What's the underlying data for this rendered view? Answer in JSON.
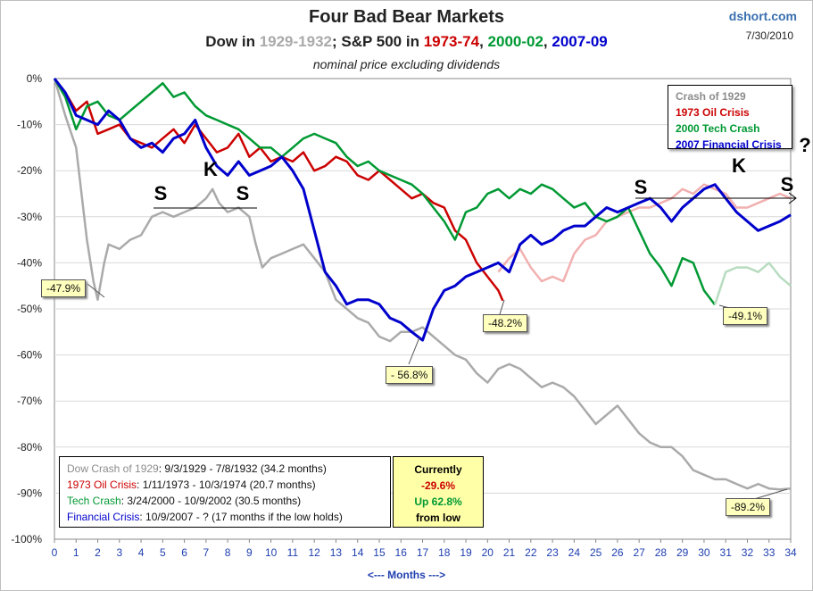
{
  "title": "Four Bad Bear Markets",
  "subtitle": {
    "p1": "Dow in ",
    "p2": "1929-1932",
    "p3": "; S&P 500 in ",
    "p4": "1973-74",
    "p5": ", ",
    "p6": "2000-02",
    "p7": ", ",
    "p8": "2007-09"
  },
  "note": "nominal price excluding dividends",
  "brand": "dshort.com",
  "date": "7/30/2010",
  "legend": [
    {
      "label": "Crash of 1929",
      "color": "#8c8c8c"
    },
    {
      "label": "1973  Oil Crisis",
      "color": "#cc0000"
    },
    {
      "label": "2000  Tech Crash",
      "color": "#009933"
    },
    {
      "label": "2007  Financial Crisis",
      "color": "#0000cc"
    }
  ],
  "info": [
    {
      "name": "Dow Crash of 1929",
      "rest": ": 9/3/1929  - 7/8/1932  (34.2 months)",
      "color": "#8c8c8c"
    },
    {
      "name": "1973 Oil Crisis",
      "rest": ": 1/11/1973  - 10/3/1974  (20.7 months)",
      "color": "#cc0000"
    },
    {
      "name": "Tech Crash",
      "rest": ":  3/24/2000  - 10/9/2002  (30.5 months)",
      "color": "#009933"
    },
    {
      "name": "Financial Crisis",
      "rest": ": 10/9/2007  -  ?  (17 months if the low holds)",
      "color": "#0000cc"
    }
  ],
  "currently": {
    "l1": "Currently",
    "l2": "-29.6%",
    "l3": "Up  62.8%",
    "l4": "from low"
  },
  "callouts": [
    "-47.9%",
    "- 56.8%",
    "-48.2%",
    "-49.1%",
    "-89.2%"
  ],
  "xaxis_label": "<---  Months  --->",
  "annotations": [
    "S",
    "K",
    "S",
    "S",
    "K",
    "S",
    "?"
  ],
  "chart_data": {
    "type": "line",
    "title": "Four Bad Bear Markets",
    "xlabel": "Months",
    "ylabel": "",
    "xlim": [
      0,
      34
    ],
    "ylim": [
      -100,
      0
    ],
    "x_ticks": [
      "0",
      "1",
      "2",
      "3",
      "4",
      "5",
      "6",
      "7",
      "8",
      "9",
      "10",
      "11",
      "12",
      "13",
      "14",
      "15",
      "16",
      "17",
      "18",
      "19",
      "20",
      "21",
      "22",
      "23",
      "24",
      "25",
      "26",
      "27",
      "28",
      "29",
      "30",
      "31",
      "32",
      "33",
      "34"
    ],
    "y_ticks": [
      "0%",
      "-10%",
      "-20%",
      "-30%",
      "-40%",
      "-50%",
      "-60%",
      "-70%",
      "-80%",
      "-90%",
      "-100%"
    ],
    "series": [
      {
        "name": "Crash of 1929",
        "color": "#aaaaaa",
        "x": [
          0,
          0.5,
          1,
          1.5,
          1.8,
          2,
          2.3,
          2.5,
          3,
          3.5,
          4,
          4.5,
          5,
          5.5,
          6,
          6.5,
          7,
          7.3,
          7.6,
          8,
          8.5,
          9,
          9.3,
          9.6,
          10,
          10.5,
          11,
          11.5,
          12,
          12.5,
          13,
          13.5,
          14,
          14.5,
          15,
          15.5,
          16,
          16.5,
          17,
          17.5,
          18,
          18.5,
          19,
          19.5,
          20,
          20.5,
          21,
          21.5,
          22,
          22.5,
          23,
          23.5,
          24,
          24.5,
          25,
          25.5,
          26,
          26.5,
          27,
          27.5,
          28,
          28.5,
          29,
          29.5,
          30,
          30.5,
          31,
          31.5,
          32,
          32.5,
          33,
          33.5,
          34
        ],
        "y": [
          0,
          -8,
          -15,
          -35,
          -44,
          -48,
          -40,
          -36,
          -37,
          -35,
          -34,
          -30,
          -29,
          -30,
          -29,
          -28,
          -26,
          -24,
          -27,
          -29,
          -28,
          -30,
          -36,
          -41,
          -39,
          -38,
          -37,
          -36,
          -39,
          -42,
          -48,
          -50,
          -52,
          -53,
          -56,
          -57,
          -55,
          -55,
          -54,
          -56,
          -58,
          -60,
          -61,
          -64,
          -66,
          -63,
          -62,
          -63,
          -65,
          -67,
          -66,
          -67,
          -69,
          -72,
          -75,
          -73,
          -71,
          -74,
          -77,
          -79,
          -80,
          -80,
          -82,
          -85,
          -86,
          -87,
          -87,
          -88,
          -89,
          -88,
          -89,
          -89.2,
          -89
        ]
      },
      {
        "name": "1929 (continued, faded)",
        "color": "#f2b0b0",
        "x": [
          20.5,
          21,
          21.5,
          22,
          22.5,
          23,
          23.5,
          24,
          24.5,
          25,
          25.5,
          26,
          26.5,
          27,
          27.5,
          28,
          28.5,
          29,
          29.5,
          30,
          30.5,
          31,
          31.5,
          32,
          32.5,
          33,
          33.5,
          34
        ],
        "y": [
          -42,
          -39,
          -37,
          -41,
          -44,
          -43,
          -44,
          -38,
          -35,
          -34,
          -31,
          -30,
          -29,
          -28,
          -28,
          -27,
          -26,
          -24,
          -25,
          -23,
          -24,
          -25,
          -28,
          -28,
          -27,
          -26,
          -25,
          -26
        ]
      },
      {
        "name": "1973 Oil Crisis",
        "color": "#cc0000",
        "x": [
          0,
          0.5,
          1,
          1.5,
          2,
          2.5,
          3,
          3.5,
          4,
          4.5,
          5,
          5.5,
          6,
          6.5,
          7,
          7.5,
          8,
          8.5,
          9,
          9.5,
          10,
          10.5,
          11,
          11.5,
          12,
          12.5,
          13,
          13.5,
          14,
          14.5,
          15,
          15.5,
          16,
          16.5,
          17,
          17.5,
          18,
          18.5,
          19,
          19.5,
          20,
          20.5,
          20.7
        ],
        "y": [
          0,
          -3,
          -7,
          -5,
          -12,
          -11,
          -10,
          -13,
          -14,
          -15,
          -13,
          -11,
          -14,
          -10,
          -13,
          -16,
          -15,
          -12,
          -17,
          -15,
          -18,
          -17,
          -18,
          -16,
          -20,
          -19,
          -17,
          -18,
          -21,
          -22,
          -20,
          -22,
          -24,
          -26,
          -25,
          -27,
          -28,
          -33,
          -35,
          -40,
          -43,
          -46,
          -48.2
        ]
      },
      {
        "name": "2000 Tech Crash",
        "color": "#009933",
        "x": [
          0,
          0.5,
          1,
          1.5,
          2,
          2.5,
          3,
          3.5,
          4,
          4.5,
          5,
          5.5,
          6,
          6.5,
          7,
          7.5,
          8,
          8.5,
          9,
          9.5,
          10,
          10.5,
          11,
          11.5,
          12,
          12.5,
          13,
          13.5,
          14,
          14.5,
          15,
          15.5,
          16,
          16.5,
          17,
          17.5,
          18,
          18.5,
          19,
          19.5,
          20,
          20.5,
          21,
          21.5,
          22,
          22.5,
          23,
          23.5,
          24,
          24.5,
          25,
          25.5,
          26,
          26.5,
          27,
          27.5,
          28,
          28.5,
          29,
          29.5,
          30,
          30.5
        ],
        "y": [
          0,
          -4,
          -11,
          -6,
          -5,
          -8,
          -9,
          -7,
          -5,
          -3,
          -1,
          -4,
          -3,
          -6,
          -8,
          -9,
          -10,
          -11,
          -13,
          -15,
          -15,
          -17,
          -15,
          -13,
          -12,
          -13,
          -14,
          -17,
          -19,
          -18,
          -20,
          -21,
          -22,
          -23,
          -25,
          -28,
          -31,
          -35,
          -29,
          -28,
          -25,
          -24,
          -26,
          -24,
          -25,
          -23,
          -24,
          -26,
          -28,
          -27,
          -30,
          -31,
          -30,
          -28,
          -33,
          -38,
          -41,
          -45,
          -39,
          -40,
          -46,
          -49.1
        ]
      },
      {
        "name": "2000 (continued, faded)",
        "color": "#b8dcc0",
        "x": [
          30.5,
          31,
          31.5,
          32,
          32.5,
          33,
          33.5,
          34
        ],
        "y": [
          -49.1,
          -42,
          -41,
          -41,
          -42,
          -40,
          -43,
          -45
        ]
      },
      {
        "name": "2007 Financial Crisis",
        "color": "#0000cc",
        "x": [
          0,
          0.5,
          1,
          1.5,
          2,
          2.5,
          3,
          3.5,
          4,
          4.5,
          5,
          5.5,
          6,
          6.5,
          7,
          7.5,
          8,
          8.5,
          9,
          9.5,
          10,
          10.5,
          11,
          11.5,
          12,
          12.5,
          13,
          13.5,
          14,
          14.5,
          15,
          15.5,
          16,
          16.5,
          17,
          17.5,
          18,
          18.5,
          19,
          19.5,
          20,
          20.5,
          21,
          21.5,
          22,
          22.5,
          23,
          23.5,
          24,
          24.5,
          25,
          25.5,
          26,
          26.5,
          27,
          27.5,
          28,
          28.5,
          29,
          29.5,
          30,
          30.5,
          31,
          31.5,
          32,
          32.5,
          33,
          33.5,
          34
        ],
        "y": [
          0,
          -3,
          -8,
          -9,
          -10,
          -7,
          -9,
          -13,
          -15,
          -14,
          -16,
          -13,
          -12,
          -9,
          -15,
          -19,
          -21,
          -18,
          -21,
          -20,
          -19,
          -17,
          -20,
          -24,
          -33,
          -42,
          -45,
          -49,
          -48,
          -48,
          -49,
          -52,
          -53,
          -55,
          -56.8,
          -50,
          -46,
          -45,
          -43,
          -42,
          -41,
          -40,
          -42,
          -36,
          -34,
          -36,
          -35,
          -33,
          -32,
          -32,
          -30,
          -28,
          -29,
          -28,
          -27,
          -26,
          -28,
          -31,
          -28,
          -26,
          -24,
          -23,
          -26,
          -29,
          -31,
          -33,
          -32,
          -31,
          -29.6
        ]
      }
    ]
  }
}
